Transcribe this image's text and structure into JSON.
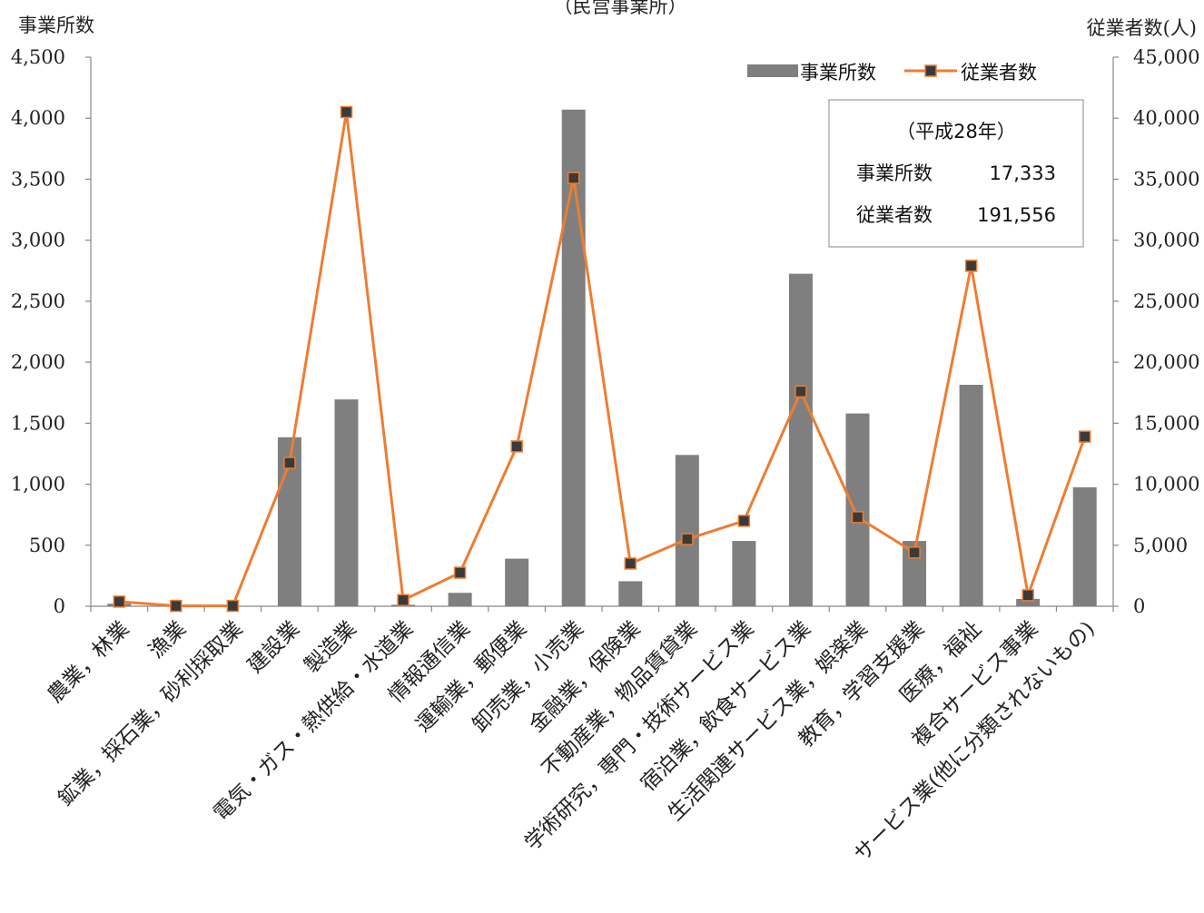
{
  "chart_data": {
    "type": "bar",
    "title": "（民営事業所）",
    "y_left_label": "事業所数",
    "y_right_label": "従業者数(人)",
    "y_left_lim": [
      0,
      4500
    ],
    "y_right_lim": [
      0,
      45000
    ],
    "y_left_ticks": [
      "0",
      "500",
      "1,000",
      "1,500",
      "2,000",
      "2,500",
      "3,000",
      "3,500",
      "4,000",
      "4,500"
    ],
    "y_right_ticks": [
      "0",
      "5,000",
      "10,000",
      "15,000",
      "20,000",
      "25,000",
      "30,000",
      "35,000",
      "40,000",
      "45,000"
    ],
    "categories": [
      "農業，林業",
      "漁業",
      "鉱業，採石業，砂利採取業",
      "建設業",
      "製造業",
      "電気・ガス・熱供給・水道業",
      "情報通信業",
      "運輸業，郵便業",
      "卸売業，小売業",
      "金融業，保険業",
      "不動産業，物品賃貸業",
      "学術研究，専門・技術サービス業",
      "宿泊業，飲食サービス業",
      "生活関連サービス業，娯楽業",
      "教育，学習支援業",
      "医療，福祉",
      "複合サービス事業",
      "サービス業(他に分類されないもの)"
    ],
    "series": [
      {
        "name": "事業所数",
        "kind": "bar",
        "axis": "left",
        "color": "#7f7f7f",
        "values": [
          20,
          3,
          3,
          1385,
          1695,
          12,
          110,
          390,
          4070,
          205,
          1240,
          535,
          2725,
          1580,
          535,
          1815,
          60,
          975
        ]
      },
      {
        "name": "従業者数",
        "kind": "line",
        "axis": "right",
        "color": "#ed7d31",
        "marker_color": "#3a3a3a",
        "values": [
          380,
          30,
          30,
          11750,
          40500,
          500,
          2750,
          13100,
          35100,
          3500,
          5500,
          7000,
          17600,
          7300,
          4400,
          27900,
          900,
          13900
        ]
      }
    ],
    "legend": {
      "placement": "top-right",
      "items": [
        "事業所数",
        "従業者数"
      ]
    },
    "grid": false,
    "annotation_box": {
      "title": "（平成28年）",
      "rows": [
        {
          "label": "事業所数",
          "value": "17,333"
        },
        {
          "label": "従業者数",
          "value": "191,556"
        }
      ]
    }
  }
}
